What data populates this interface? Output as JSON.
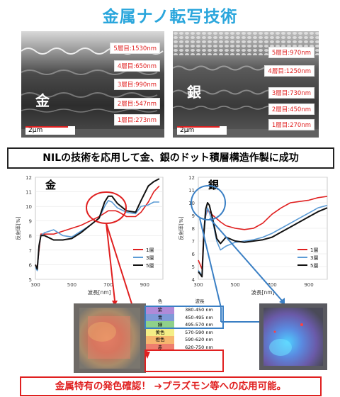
{
  "title": "金属ナノ転写技術",
  "sem_gold": {
    "metal": "金",
    "scale": "2μm",
    "layers": [
      "5層目:1530nm",
      "4層目:650nm",
      "3層目:990nm",
      "2層目:547nm",
      "1層目:273nm"
    ]
  },
  "sem_silver": {
    "metal": "銀",
    "scale": "2μm",
    "layers": [
      "5層目:970nm",
      "4層目:1250nm",
      "3層目:730nm",
      "2層目:450nm",
      "1層目:270nm"
    ]
  },
  "banner": "NILの技術を応用して金、銀のドット積層構造作製に成功",
  "chart_data": [
    {
      "type": "line",
      "title": "金",
      "xlabel": "波長[nm]",
      "ylabel": "反射率[%]",
      "xlim": [
        300,
        1000
      ],
      "ylim": [
        5,
        12
      ],
      "xticks": [
        "300",
        "500",
        "700",
        "900"
      ],
      "yticks": [
        "5",
        "6",
        "7",
        "8",
        "9",
        "10",
        "11",
        "12"
      ],
      "legend_position": "middle-right",
      "series": [
        {
          "name": "1層",
          "color": "#e02020",
          "x": [
            300,
            310,
            320,
            330,
            350,
            400,
            450,
            500,
            550,
            600,
            650,
            700,
            740,
            760,
            800,
            850,
            880,
            920,
            950,
            980
          ],
          "y": [
            6.0,
            5.8,
            7.0,
            8.1,
            8.1,
            8.1,
            8.3,
            8.5,
            8.7,
            9.0,
            9.3,
            9.7,
            9.7,
            9.6,
            9.3,
            9.3,
            9.6,
            10.3,
            11.0,
            11.4
          ]
        },
        {
          "name": "3層",
          "color": "#5b9bd5",
          "x": [
            300,
            310,
            320,
            330,
            350,
            400,
            450,
            500,
            550,
            600,
            650,
            680,
            700,
            720,
            750,
            800,
            850,
            880,
            920,
            950,
            980
          ],
          "y": [
            5.8,
            5.6,
            7.2,
            8.0,
            8.2,
            8.4,
            8.0,
            7.9,
            8.3,
            8.7,
            9.2,
            10.0,
            10.4,
            10.3,
            9.9,
            9.6,
            9.5,
            10.0,
            10.1,
            10.3,
            10.3
          ]
        },
        {
          "name": "5層",
          "color": "#111111",
          "x": [
            300,
            310,
            320,
            330,
            350,
            400,
            450,
            500,
            550,
            600,
            650,
            680,
            700,
            720,
            750,
            800,
            850,
            880,
            920,
            950,
            980
          ],
          "y": [
            6.0,
            5.7,
            7.3,
            8.0,
            8.0,
            7.7,
            7.7,
            7.8,
            8.2,
            8.7,
            9.2,
            10.3,
            10.7,
            10.7,
            10.2,
            9.7,
            9.6,
            10.4,
            11.4,
            11.7,
            11.9
          ]
        }
      ]
    },
    {
      "type": "line",
      "title": "銀",
      "xlabel": "波長[nm]",
      "ylabel": "反射率[%]",
      "xlim": [
        300,
        1000
      ],
      "ylim": [
        4,
        12
      ],
      "xticks": [
        "300",
        "500",
        "700",
        "900"
      ],
      "yticks": [
        "4",
        "5",
        "6",
        "7",
        "8",
        "9",
        "10",
        "11",
        "12"
      ],
      "legend_position": "middle-right",
      "series": [
        {
          "name": "1層",
          "color": "#e02020",
          "x": [
            300,
            320,
            330,
            340,
            350,
            360,
            380,
            420,
            450,
            500,
            550,
            600,
            650,
            700,
            750,
            800,
            850,
            900,
            950,
            1000
          ],
          "y": [
            5.5,
            4.8,
            7.8,
            9.0,
            9.4,
            9.3,
            9.0,
            8.5,
            8.2,
            8.0,
            7.9,
            8.0,
            8.4,
            9.1,
            9.6,
            10.0,
            10.1,
            10.2,
            10.4,
            10.5
          ]
        },
        {
          "name": "3層",
          "color": "#5b9bd5",
          "x": [
            300,
            320,
            330,
            340,
            350,
            360,
            380,
            400,
            420,
            450,
            500,
            550,
            600,
            650,
            700,
            750,
            800,
            850,
            900,
            950,
            1000
          ],
          "y": [
            4.7,
            4.3,
            7.4,
            9.0,
            9.6,
            9.2,
            8.4,
            7.0,
            6.3,
            6.6,
            6.9,
            7.0,
            7.1,
            7.3,
            7.6,
            8.0,
            8.4,
            8.8,
            9.2,
            9.6,
            9.8
          ]
        },
        {
          "name": "5層",
          "color": "#111111",
          "x": [
            300,
            320,
            330,
            340,
            350,
            360,
            380,
            400,
            420,
            450,
            500,
            550,
            600,
            650,
            700,
            750,
            800,
            850,
            900,
            950,
            1000
          ],
          "y": [
            4.6,
            4.2,
            7.6,
            9.5,
            10.0,
            9.8,
            8.6,
            7.2,
            6.8,
            7.3,
            7.0,
            6.9,
            7.0,
            7.1,
            7.3,
            7.7,
            8.1,
            8.5,
            8.9,
            9.3,
            9.6
          ]
        }
      ]
    }
  ],
  "color_table": {
    "header": [
      "色",
      "波長"
    ],
    "rows": [
      {
        "name": "紫",
        "range": "380-450 nm",
        "color": "#b08ad8"
      },
      {
        "name": "青",
        "range": "450-495 nm",
        "color": "#7f9ad8"
      },
      {
        "name": "緑",
        "range": "495-570 nm",
        "color": "#8fd08a"
      },
      {
        "name": "黄色",
        "range": "570-590 nm",
        "color": "#f4ee86"
      },
      {
        "name": "橙色",
        "range": "590-620 nm",
        "color": "#f6b66e"
      },
      {
        "name": "赤",
        "range": "620-750 nm",
        "color": "#ee7f6e"
      }
    ]
  },
  "footer": "金属特有の発色確認！ ➔プラズモン等への応用可能。"
}
